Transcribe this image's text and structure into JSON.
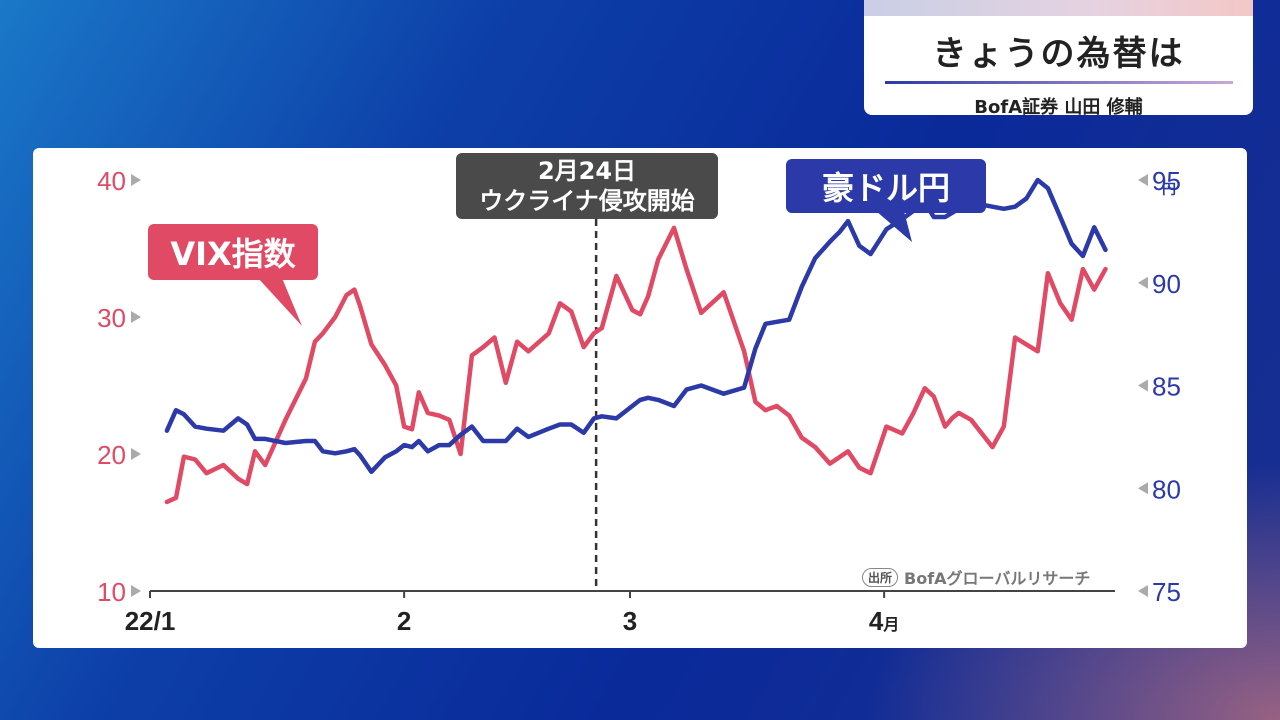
{
  "title_card": {
    "title": "きょうの為替は",
    "subtitle": "BofA証券 山田 修輔"
  },
  "labels": {
    "vix": "VIX指数",
    "aud": "豪ドル円",
    "event_line1": "2月24日",
    "event_line2": "ウクライナ侵攻開始",
    "source_badge": "出所",
    "source_text": "BofAグローバルリサーチ"
  },
  "colors": {
    "vix": "#e04a64",
    "aud": "#2b3aa8",
    "event_line": "#333333"
  },
  "chart_data": {
    "type": "line",
    "left_axis": {
      "ticks": [
        10,
        20,
        30,
        40
      ],
      "range": [
        10,
        40
      ],
      "tick_labels": [
        "10",
        "20",
        "30",
        "40"
      ]
    },
    "right_axis": {
      "ticks": [
        75,
        80,
        85,
        90,
        95
      ],
      "range": [
        75,
        95
      ],
      "tick_labels": [
        "75",
        "80",
        "85",
        "90",
        "95"
      ],
      "unit": "円"
    },
    "x_axis": {
      "range": [
        0,
        85
      ],
      "ticks": [
        {
          "t": 0,
          "label": "22/1"
        },
        {
          "t": 22.5,
          "label": "2"
        },
        {
          "t": 42.5,
          "label": "3"
        },
        {
          "t": 65,
          "label": "4",
          "suffix": "月"
        }
      ]
    },
    "event_t": 39.5,
    "series": [
      {
        "name": "VIX指数",
        "axis": "left",
        "t": [
          1.5,
          2.3,
          3.0,
          4.0,
          5.0,
          6.5,
          7.8,
          8.6,
          9.3,
          10.2,
          12.0,
          13.8,
          14.6,
          15.3,
          16.4,
          17.4,
          18.1,
          18.6,
          19.6,
          20.8,
          21.8,
          22.5,
          23.2,
          23.8,
          24.6,
          25.6,
          26.5,
          27.5,
          28.5,
          29.5,
          30.5,
          31.5,
          32.5,
          33.5,
          35.3,
          36.3,
          37.3,
          38.4,
          39.3,
          40.0,
          41.3,
          42.7,
          43.4,
          44.1,
          45.0,
          46.4,
          47.5,
          48.8,
          50.8,
          52.6,
          53.6,
          54.5,
          55.5,
          56.6,
          57.7,
          58.9,
          60.2,
          61.1,
          61.8,
          62.8,
          63.8,
          65.2,
          66.6,
          67.6,
          68.6,
          69.4,
          70.4,
          71.0,
          71.6,
          72.7,
          74.6,
          75.6,
          76.6,
          77.6,
          78.6,
          79.5,
          80.6,
          81.6,
          82.6,
          83.6,
          84.6
        ],
        "values": [
          16.5,
          16.8,
          19.8,
          19.6,
          18.6,
          19.2,
          18.2,
          17.8,
          20.2,
          19.2,
          22.5,
          25.5,
          28.2,
          28.8,
          30.0,
          31.6,
          32.0,
          30.8,
          28.0,
          26.5,
          25.0,
          22.0,
          21.8,
          24.5,
          23.0,
          22.8,
          22.5,
          20.0,
          27.2,
          27.8,
          28.5,
          25.2,
          28.2,
          27.5,
          28.8,
          31.0,
          30.4,
          27.8,
          28.8,
          29.2,
          33.0,
          30.5,
          30.2,
          31.5,
          34.2,
          36.5,
          33.5,
          30.3,
          31.8,
          27.5,
          23.8,
          23.2,
          23.5,
          22.8,
          21.2,
          20.5,
          19.3,
          19.8,
          20.2,
          19.0,
          18.6,
          22.0,
          21.5,
          23.0,
          24.8,
          24.2,
          22.0,
          22.6,
          23.0,
          22.5,
          20.5,
          22.0,
          28.5,
          28.0,
          27.5,
          33.2,
          31.0,
          29.8,
          33.5,
          32.0,
          33.5
        ]
      },
      {
        "name": "豪ドル円",
        "axis": "right",
        "t": [
          1.5,
          2.3,
          3.0,
          4.0,
          5.0,
          6.5,
          7.8,
          8.6,
          9.3,
          10.2,
          12.0,
          13.8,
          14.6,
          15.3,
          16.4,
          17.4,
          18.1,
          18.6,
          19.6,
          20.8,
          21.8,
          22.5,
          23.2,
          23.8,
          24.6,
          25.6,
          26.5,
          27.5,
          28.5,
          29.5,
          30.5,
          31.5,
          32.5,
          33.5,
          35.3,
          36.3,
          37.3,
          38.4,
          39.3,
          40.0,
          41.3,
          42.7,
          43.4,
          44.1,
          45.0,
          46.4,
          47.5,
          48.8,
          50.8,
          52.6,
          53.6,
          54.5,
          55.5,
          56.6,
          57.7,
          58.9,
          60.2,
          61.1,
          61.8,
          62.8,
          63.8,
          65.2,
          66.6,
          67.6,
          68.6,
          69.4,
          70.4,
          71.0,
          71.6,
          72.7,
          74.6,
          75.6,
          76.6,
          77.6,
          78.6,
          79.5,
          80.6,
          81.6,
          82.6,
          83.6,
          84.6
        ],
        "values": [
          82.8,
          83.8,
          83.6,
          83.0,
          82.9,
          82.8,
          83.4,
          83.1,
          82.4,
          82.4,
          82.2,
          82.3,
          82.3,
          81.8,
          81.7,
          81.8,
          81.9,
          81.6,
          80.8,
          81.5,
          81.8,
          82.1,
          82.0,
          82.3,
          81.8,
          82.1,
          82.1,
          82.6,
          83.0,
          82.3,
          82.3,
          82.3,
          82.9,
          82.5,
          82.9,
          83.1,
          83.1,
          82.7,
          83.4,
          83.5,
          83.4,
          84.0,
          84.3,
          84.4,
          84.3,
          84.0,
          84.8,
          85.0,
          84.6,
          84.9,
          86.8,
          88.0,
          88.1,
          88.2,
          89.8,
          91.2,
          92.0,
          92.5,
          93.0,
          91.8,
          91.4,
          92.6,
          93.1,
          93.5,
          93.9,
          93.2,
          93.2,
          93.4,
          93.6,
          93.9,
          93.7,
          93.6,
          93.7,
          94.1,
          95.0,
          94.6,
          93.2,
          91.9,
          91.3,
          92.7,
          91.6
        ]
      }
    ]
  }
}
